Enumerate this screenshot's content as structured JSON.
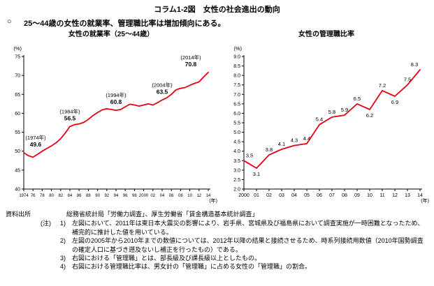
{
  "page": {
    "title": "コラム1-2図　女性の社会進出の動向",
    "statement_bullet": "○",
    "statement": "25〜44歳の女性の就業率、管理職比率は増加傾向にある。"
  },
  "notes": {
    "source_label": "資料出所",
    "source_text": "総務省統計局「労働力調査」、厚生労働省「賃金構造基本統計調査」",
    "note_label": "(注)",
    "items": [
      {
        "num": "1)",
        "text": "左図において、2011年は東日本大震災の影響により、岩手県、宮城県及び福島県において調査実施が一時困難となったため、補完的に推計した値を用いている。"
      },
      {
        "num": "2)",
        "text": "左図の2005年から2010年までの数値については、2012年以降の結果と接続させるため、時系列接続用数値（2010年国勢調査の確定人口に基づき遡及ないし補正を行ったもの）である。"
      },
      {
        "num": "3)",
        "text": "右図における「管理職」とは、部長級及び課長級以上としたもの。"
      },
      {
        "num": "4)",
        "text": "右図における管理職比率は、男女計の「管理職」に占める女性の「管理職」の割合。"
      }
    ]
  },
  "chart_data": [
    {
      "type": "line",
      "title": "女性の就業率（25〜44歳）",
      "unit_y": "(%)",
      "unit_x": "(年)",
      "ylim": [
        40,
        75
      ],
      "ytick": 5,
      "ydecimals": 0,
      "line_color": "#e60012",
      "x": [
        1974,
        1975,
        1976,
        1977,
        1978,
        1979,
        1980,
        1981,
        1982,
        1983,
        1984,
        1985,
        1986,
        1987,
        1988,
        1989,
        1990,
        1991,
        1992,
        1993,
        1994,
        1995,
        1996,
        1997,
        1998,
        1999,
        2000,
        2001,
        2002,
        2003,
        2004,
        2005,
        2006,
        2007,
        2008,
        2009,
        2010,
        2011,
        2012,
        2013,
        2014
      ],
      "xlabels": [
        "1974",
        "",
        "76",
        "",
        "78",
        "",
        "80",
        "",
        "82",
        "",
        "84",
        "",
        "86",
        "",
        "88",
        "",
        "90",
        "",
        "92",
        "",
        "94",
        "",
        "96",
        "",
        "98",
        "",
        "2000",
        "",
        "02",
        "",
        "04",
        "",
        "06",
        "",
        "08",
        "",
        "10",
        "",
        "12",
        "",
        "14"
      ],
      "values": [
        49.6,
        48.8,
        48.4,
        49.2,
        50.0,
        50.7,
        51.4,
        52.2,
        53.3,
        54.8,
        56.5,
        57.0,
        57.2,
        57.6,
        58.4,
        59.4,
        60.2,
        60.9,
        61.2,
        61.0,
        60.8,
        61.0,
        61.7,
        62.4,
        62.2,
        61.9,
        62.2,
        62.5,
        62.2,
        62.8,
        63.5,
        64.1,
        65.0,
        66.2,
        66.6,
        66.8,
        67.4,
        67.9,
        68.3,
        69.6,
        70.8
      ],
      "annotations": [
        {
          "year": 1974,
          "year_label": "(1974年)",
          "value_label": "49.6"
        },
        {
          "year": 1984,
          "year_label": "(1984年)",
          "value_label": "56.5"
        },
        {
          "year": 1994,
          "year_label": "(1994年)",
          "value_label": "60.8"
        },
        {
          "year": 2004,
          "year_label": "(2004年)",
          "value_label": "63.5"
        },
        {
          "year": 2014,
          "year_label": "(2014年)",
          "value_label": "70.8"
        }
      ]
    },
    {
      "type": "line",
      "title": "女性の管理職比率",
      "unit_y": "(%)",
      "unit_x": "(年)",
      "ylim": [
        2.0,
        9.0
      ],
      "ytick": 0.5,
      "ydecimals": 1,
      "line_color": "#e60012",
      "x": [
        2000,
        2001,
        2002,
        2003,
        2004,
        2005,
        2006,
        2007,
        2008,
        2009,
        2010,
        2011,
        2012,
        2013,
        2014
      ],
      "xlabels": [
        "2000",
        "01",
        "02",
        "03",
        "04",
        "05",
        "06",
        "07",
        "08",
        "09",
        "10",
        "11",
        "12",
        "13",
        "14"
      ],
      "values": [
        3.5,
        3.1,
        3.8,
        4.1,
        4.3,
        4.4,
        5.4,
        5.8,
        5.9,
        6.5,
        6.2,
        7.2,
        6.9,
        7.5,
        8.3
      ],
      "point_labels": [
        "3.5",
        "3.1",
        "3.8",
        "4.1",
        "4.3",
        "4.4",
        "5.4",
        "5.8",
        "5.9",
        "6.5",
        "6.2",
        "7.2",
        "6.9",
        "7.5",
        "8.3"
      ],
      "label_pos": [
        "above",
        "below",
        "above",
        "above",
        "above",
        "above",
        "above",
        "above",
        "above",
        "above",
        "below",
        "above",
        "below",
        "above",
        "above"
      ]
    }
  ]
}
